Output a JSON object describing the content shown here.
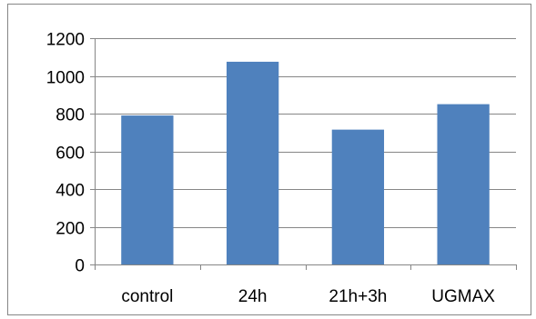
{
  "chart_data": {
    "type": "bar",
    "categories": [
      "control",
      "24h",
      "21h+3h",
      "UGMAX"
    ],
    "values": [
      790,
      1075,
      715,
      850
    ],
    "ylim": [
      0,
      1200
    ],
    "yticks": [
      0,
      200,
      400,
      600,
      800,
      1000,
      1200
    ],
    "grid": true,
    "legend": "none",
    "bar_color": "#4f81bd",
    "title": "",
    "xlabel": "",
    "ylabel": ""
  }
}
